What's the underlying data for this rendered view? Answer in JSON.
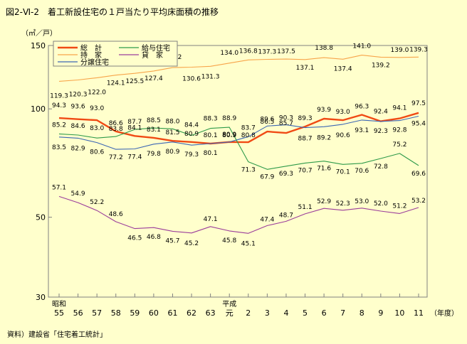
{
  "page": {
    "title": "図2-Ⅵ-2　着工新設住宅の１戸当たり平均床面積の推移",
    "source": "資料）建設省「住宅着工統計」"
  },
  "chart_data": {
    "type": "line",
    "title": "図2-Ⅵ-2　着工新設住宅の１戸当たり平均床面積の推移",
    "ylabel": "（㎡／戸）",
    "xlabel": "（年度）",
    "ylim": [
      30,
      150
    ],
    "yscale": "log",
    "yticks": [
      150,
      100,
      50,
      30
    ],
    "grid": false,
    "legend_position": "top-left",
    "x": [
      "55",
      "56",
      "57",
      "58",
      "59",
      "60",
      "61",
      "62",
      "63",
      "元",
      "2",
      "3",
      "4",
      "5",
      "6",
      "7",
      "8",
      "9",
      "10",
      "11"
    ],
    "x_era_labels": [
      {
        "index": 0,
        "label": "昭和"
      },
      {
        "index": 9,
        "label": "平成"
      }
    ],
    "series": [
      {
        "name": "総　計",
        "color": "#F04A14",
        "values": [
          94.3,
          93.6,
          93.0,
          86.6,
          84.1,
          83.1,
          81.5,
          80.9,
          80.1,
          80.9,
          80.8,
          86.5,
          85.7,
          89.3,
          93.9,
          93.0,
          96.3,
          92.4,
          94.1,
          97.5
        ]
      },
      {
        "name": "持　家",
        "color": "#F7A44A",
        "values": [
          119.3,
          120.3,
          122.0,
          124.1,
          125.5,
          127.4,
          130.2,
          130.6,
          131.3,
          134.0,
          136.8,
          137.3,
          137.5,
          137.1,
          138.8,
          137.4,
          141.0,
          139.2,
          139.0,
          139.3
        ]
      },
      {
        "name": "分譲住宅",
        "color": "#3C66B4",
        "values": [
          83.5,
          82.9,
          80.6,
          77.2,
          77.4,
          79.8,
          80.9,
          79.3,
          80.1,
          80.9,
          83.7,
          89.6,
          90.3,
          88.7,
          89.2,
          90.6,
          93.1,
          92.3,
          92.8,
          95.4
        ]
      },
      {
        "name": "給与住宅",
        "color": "#2E9A4A",
        "values": [
          85.2,
          84.6,
          83.0,
          83.8,
          87.7,
          88.5,
          88.0,
          84.4,
          88.3,
          88.9,
          71.3,
          67.9,
          69.3,
          70.7,
          71.6,
          70.1,
          70.6,
          72.8,
          75.2,
          69.6
        ]
      },
      {
        "name": "貸　家",
        "color": "#9B3D9B",
        "values": [
          57.1,
          54.9,
          52.2,
          48.6,
          46.5,
          46.8,
          45.7,
          45.2,
          47.1,
          45.8,
          45.1,
          47.4,
          48.7,
          51.1,
          52.9,
          52.3,
          53.0,
          52.0,
          51.2,
          53.2
        ]
      }
    ],
    "data_labels": [
      {
        "series": 0,
        "labels": [
          "94.3",
          "93.6",
          "93.0",
          "86.6",
          "84.1",
          "83.1",
          "81.5",
          "80.9",
          "80.1",
          "80.9",
          "80.8",
          "86.5",
          "85.7",
          "89.3",
          "93.9",
          "93.0",
          "96.3",
          "92.4",
          "94.1",
          "97.5"
        ]
      },
      {
        "series": 1,
        "labels": [
          "119.3",
          "120.3",
          "122.0",
          "124.1",
          "125.5",
          "127.4",
          "130.2",
          "130.6",
          "131.3",
          "134.0",
          "136.8",
          "137.3",
          "137.5",
          "137.1",
          "138.8",
          "137.4",
          "141.0",
          "139.2",
          "139.0",
          "139.3"
        ]
      },
      {
        "series": 2,
        "labels": [
          "83.5",
          "82.9",
          "80.6",
          "77.2",
          "77.4",
          "79.8",
          "80.9",
          "79.3",
          "80.1",
          "80.9",
          "83.7",
          "89.6",
          "90.3",
          "88.7",
          "89.2",
          "90.6",
          "93.1",
          "92.3",
          "92.8",
          "95.4"
        ]
      },
      {
        "series": 3,
        "labels": [
          "85.2",
          "84.6",
          "83.0",
          "83.8",
          "87.7",
          "88.5",
          "88.0",
          "84.4",
          "88.3",
          "88.9",
          "71.3",
          "67.9",
          "69.3",
          "70.7",
          "71.6",
          "70.1",
          "70.6",
          "72.8",
          "75.2",
          "69.6"
        ]
      },
      {
        "series": 4,
        "labels": [
          "57.1",
          "54.9",
          "52.2",
          "48.6",
          "46.5",
          "46.8",
          "45.7",
          "45.2",
          "47.1",
          "45.8",
          "45.1",
          "47.4",
          "48.7",
          "51.1",
          "52.9",
          "52.3",
          "53.0",
          "52.0",
          "51.2",
          "53.2"
        ]
      }
    ]
  }
}
